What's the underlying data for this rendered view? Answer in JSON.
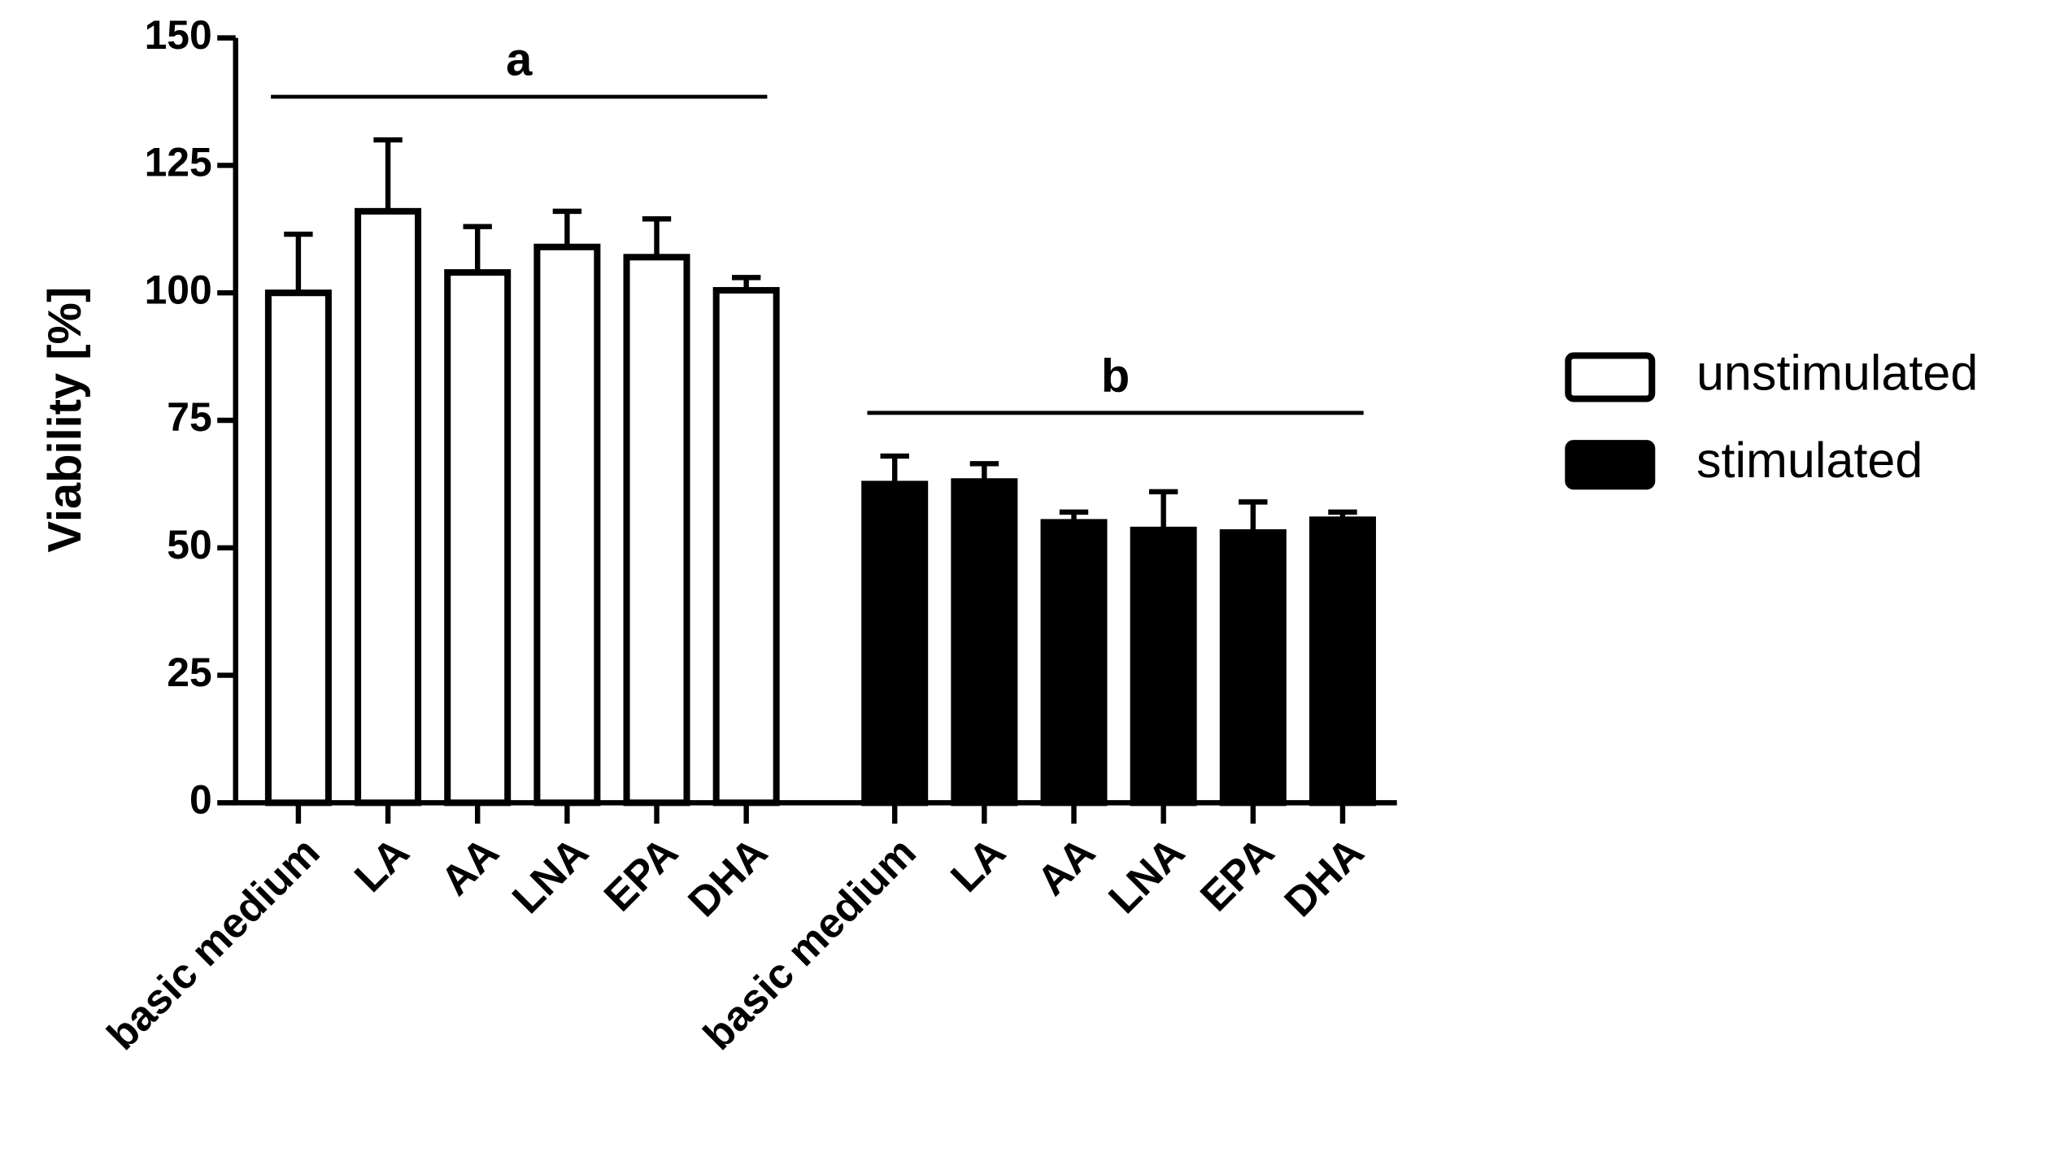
{
  "chart_data": {
    "type": "bar",
    "y_label": "Viability [%]",
    "categories": [
      "basic medium",
      "LA",
      "AA",
      "LNA",
      "EPA",
      "DHA",
      "basic medium",
      "LA",
      "AA",
      "LNA",
      "EPA",
      "DHA"
    ],
    "series": [
      {
        "name": "unstimulated",
        "color": "#ffffff",
        "values": [
          100,
          116,
          104,
          109,
          107,
          100.5,
          null,
          null,
          null,
          null,
          null,
          null
        ],
        "errors": [
          11.5,
          14,
          9,
          7,
          7.5,
          2.5,
          null,
          null,
          null,
          null,
          null,
          null
        ]
      },
      {
        "name": "stimulated",
        "color": "#000000",
        "values": [
          null,
          null,
          null,
          null,
          null,
          null,
          62.5,
          63,
          55,
          53.5,
          53,
          55.5
        ],
        "errors": [
          null,
          null,
          null,
          null,
          null,
          null,
          5.5,
          3.5,
          2,
          7.5,
          6,
          1.5
        ]
      }
    ],
    "annotations": [
      "a",
      "b"
    ],
    "ylim": [
      0,
      150
    ],
    "yticks": [
      0,
      25,
      50,
      75,
      100,
      125,
      150
    ]
  }
}
